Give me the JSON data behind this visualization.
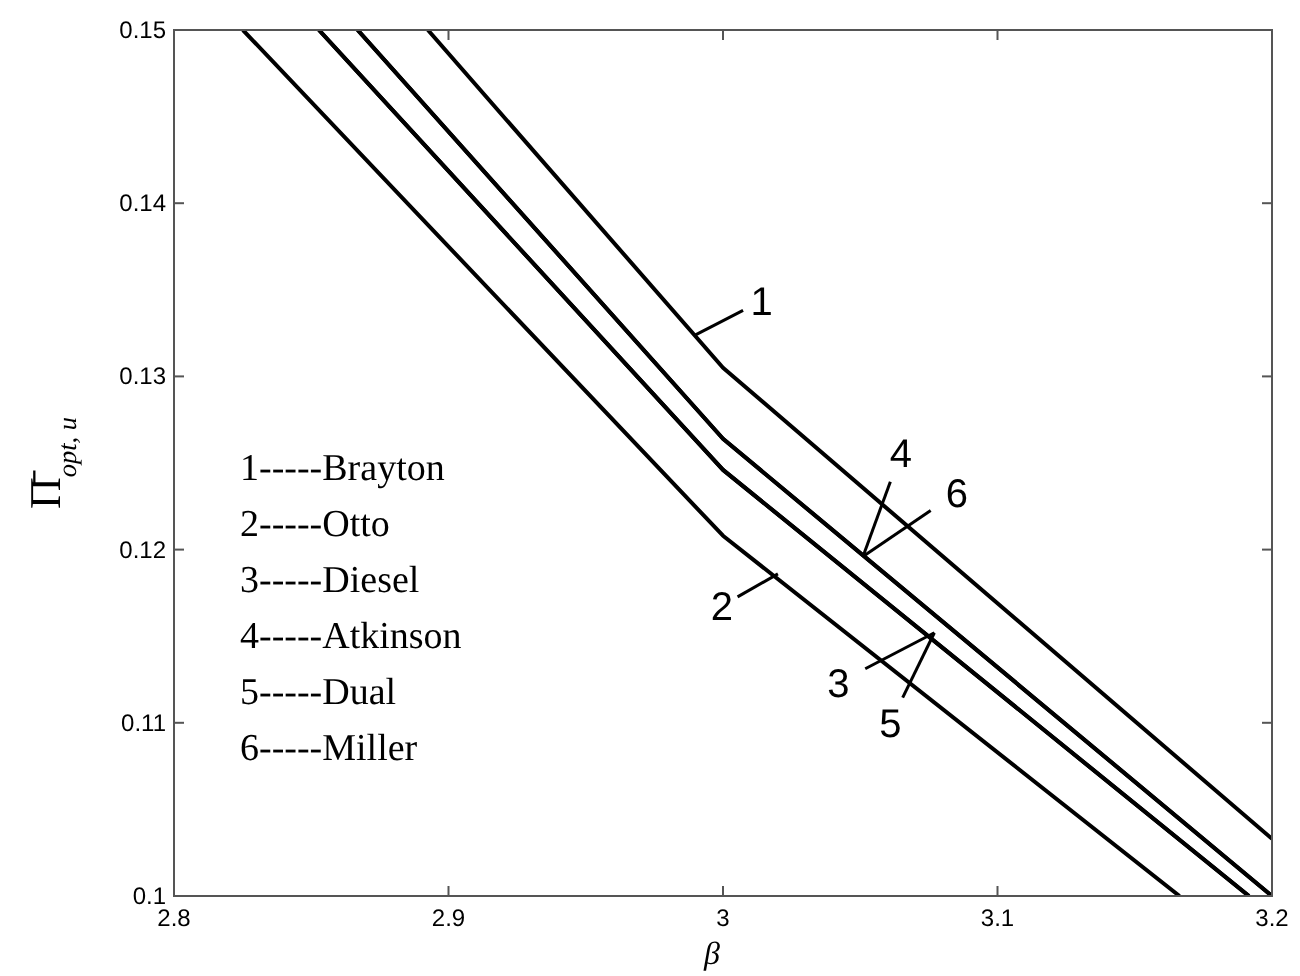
{
  "chart_data": {
    "type": "line",
    "xlabel": "β",
    "ylabel": "Π̄$_{opt, u}$",
    "xlim": [
      2.8,
      3.2
    ],
    "ylim": [
      0.1,
      0.15
    ],
    "xticks": [
      2.8,
      2.9,
      3,
      3.1,
      3.2
    ],
    "yticks": [
      0.1,
      0.11,
      0.12,
      0.13,
      0.14,
      0.15
    ],
    "grid": false,
    "series": [
      {
        "color": "#000000",
        "x": [
          2.8925,
          3.0,
          3.2
        ],
        "values": [
          0.15,
          0.1305,
          0.1033
        ]
      },
      {
        "color": "#000000",
        "x": [
          2.8251,
          3.0,
          3.1663
        ],
        "values": [
          0.15,
          0.1208,
          0.1
        ]
      },
      {
        "color": "#000000",
        "x": [
          2.8528,
          3.0,
          3.1916
        ],
        "values": [
          0.15,
          0.1246,
          0.1
        ]
      },
      {
        "color": "#000000",
        "x": [
          2.8669,
          3.0,
          3.2
        ],
        "values": [
          0.15,
          0.1264,
          0.1
        ]
      },
      {
        "color": "#000000",
        "x": [
          2.8528,
          3.0,
          3.1916
        ],
        "values": [
          0.15,
          0.1246,
          0.1
        ]
      },
      {
        "color": "#000000",
        "x": [
          2.8669,
          3.0,
          3.2
        ],
        "values": [
          0.15,
          0.1264,
          0.1
        ]
      }
    ],
    "annotations": [
      "1-----Brayton",
      "2-----Otto",
      "3-----Diesel",
      "4-----Atkinson",
      "5-----Dual",
      "6-----Miller",
      {
        "text": "1",
        "x": 2.99,
        "y": 0.1324
      },
      {
        "text": "2",
        "x": 3.02,
        "y": 0.1186
      },
      {
        "text": "3",
        "x": 3.077,
        "y": 0.1152
      },
      {
        "text": "4",
        "x": 3.051,
        "y": 0.1196
      },
      {
        "text": "5",
        "x": 3.077,
        "y": 0.1152
      },
      {
        "text": "6",
        "x": 3.051,
        "y": 0.1196
      }
    ]
  }
}
